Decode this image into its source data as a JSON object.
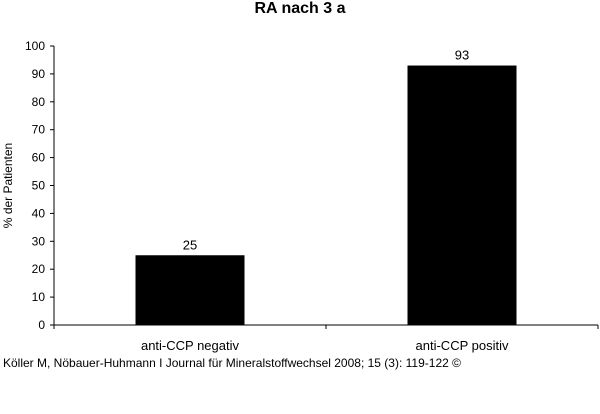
{
  "chart_data": {
    "type": "bar",
    "title": "RA nach 3 a",
    "xlabel": "",
    "ylabel": "% der Patienten",
    "categories": [
      "anti-CCP negativ",
      "anti-CCP positiv"
    ],
    "values": [
      25,
      93
    ],
    "data_labels": [
      "25",
      "93"
    ],
    "ylim": [
      0,
      100
    ],
    "yticks": [
      0,
      10,
      20,
      30,
      40,
      50,
      60,
      70,
      80,
      90,
      100
    ],
    "grid": false,
    "legend": "none",
    "bar_color": "#000000"
  },
  "caption": "Köller M, Nöbauer-Huhmann I Journal für Mineralstoffwechsel 2008; 15 (3): 119-122 ©"
}
